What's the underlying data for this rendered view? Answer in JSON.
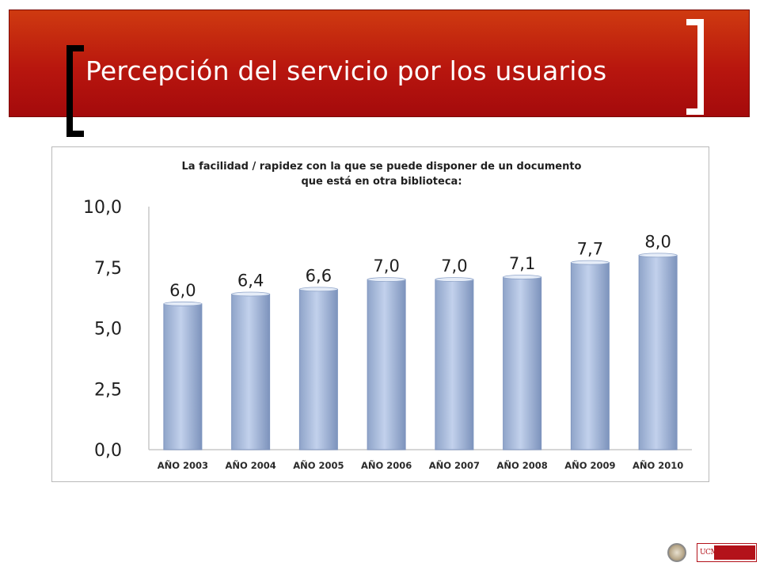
{
  "slide": {
    "title": "Percepción del servicio por los usuarios"
  },
  "logos": {
    "institution": "UCM BIBLIOTECA COMPLUTENSE"
  },
  "colors": {
    "banner": "#b8160e",
    "bar": "#b5c6e4",
    "bar_edge": "#7f95bf"
  },
  "chart_data": {
    "type": "bar",
    "title": "La facilidad / rapidez con la que se puede disponer de un documento que está en otra biblioteca:",
    "title_lines": [
      "La facilidad / rapidez con la que se puede disponer de un documento",
      "que está en otra biblioteca:"
    ],
    "categories": [
      "AÑO 2003",
      "AÑO 2004",
      "AÑO 2005",
      "AÑO 2006",
      "AÑO 2007",
      "AÑO 2008",
      "AÑO 2009",
      "AÑO 2010"
    ],
    "values": [
      6.0,
      6.4,
      6.6,
      7.0,
      7.0,
      7.1,
      7.7,
      8.0
    ],
    "data_labels": [
      "6,0",
      "6,4",
      "6,6",
      "7,0",
      "7,0",
      "7,1",
      "7,7",
      "8,0"
    ],
    "y_ticks": [
      0,
      2.5,
      5.0,
      7.5,
      10.0
    ],
    "y_tick_labels": [
      "0,0",
      "2,5",
      "5,0",
      "7,5",
      "10,0"
    ],
    "ylim": [
      0,
      10
    ],
    "xlabel": "",
    "ylabel": "",
    "grid": false,
    "legend": "none"
  }
}
